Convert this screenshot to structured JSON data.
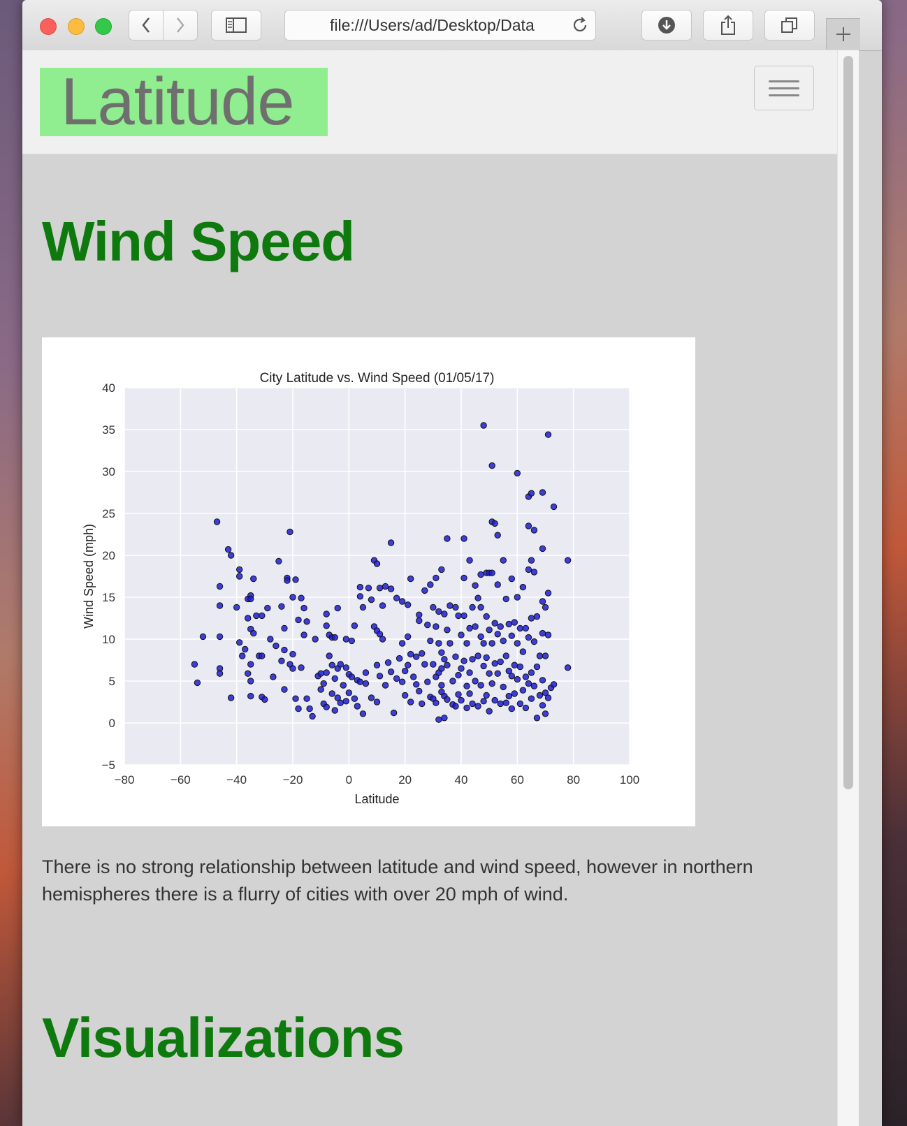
{
  "browser": {
    "url": "file:///Users/ad/Desktop/Data"
  },
  "navbar": {
    "brand": "Latitude"
  },
  "section": {
    "title": "Wind Speed",
    "description": "There is no strong relationship between latitude and wind speed, however in northern hemispheres there is a flurry of cities with over 20 mph of wind."
  },
  "next_section": {
    "title": "Visualizations"
  },
  "colors": {
    "brand_bg": "#90ee90",
    "heading": "#0e7a0e",
    "point": "#1f1fd6",
    "plot_bg": "#e9eaf2"
  },
  "chart_data": {
    "type": "scatter",
    "title": "City Latitude vs. Wind Speed (01/05/17)",
    "xlabel": "Latitude",
    "ylabel": "Wind Speed (mph)",
    "xlim": [
      -80,
      100
    ],
    "ylim": [
      -5,
      40
    ],
    "xticks": [
      "−80",
      "−60",
      "−40",
      "−20",
      "0",
      "20",
      "40",
      "60",
      "80",
      "100"
    ],
    "yticks": [
      "−5",
      "0",
      "5",
      "10",
      "15",
      "20",
      "25",
      "30",
      "35",
      "40"
    ],
    "grid": true,
    "points": [
      [
        -55,
        7
      ],
      [
        -54,
        4.8
      ],
      [
        -52,
        10.3
      ],
      [
        -47,
        24
      ],
      [
        -46,
        16.3
      ],
      [
        -46,
        14
      ],
      [
        -46,
        10.3
      ],
      [
        -46,
        6.5
      ],
      [
        -46,
        5.9
      ],
      [
        -43,
        20.7
      ],
      [
        -42,
        20
      ],
      [
        -42,
        3
      ],
      [
        -40,
        13.8
      ],
      [
        -39,
        18.3
      ],
      [
        -39,
        17.5
      ],
      [
        -39,
        9.6
      ],
      [
        -38,
        8
      ],
      [
        -37,
        8.8
      ],
      [
        -36,
        12.5
      ],
      [
        -36,
        14.8
      ],
      [
        -35,
        15.2
      ],
      [
        -35,
        14.8
      ],
      [
        -35,
        11.2
      ],
      [
        -34,
        17.2
      ],
      [
        -34,
        10.7
      ],
      [
        -35,
        7
      ],
      [
        -35,
        5
      ],
      [
        -35,
        3.2
      ],
      [
        -36,
        5.9
      ],
      [
        -33,
        12.8
      ],
      [
        -32,
        8
      ],
      [
        -31,
        12.8
      ],
      [
        -31,
        8
      ],
      [
        -31,
        3.1
      ],
      [
        -30,
        2.8
      ],
      [
        -29,
        13.7
      ],
      [
        -28,
        10
      ],
      [
        -27,
        5.5
      ],
      [
        -26,
        9.2
      ],
      [
        -25,
        19.3
      ],
      [
        -24,
        13.9
      ],
      [
        -24,
        7.4
      ],
      [
        -23,
        11.3
      ],
      [
        -23,
        8.7
      ],
      [
        -23,
        4
      ],
      [
        -22,
        17.3
      ],
      [
        -22,
        17
      ],
      [
        -21,
        22.8
      ],
      [
        -21,
        7
      ],
      [
        -20,
        15
      ],
      [
        -20,
        8.2
      ],
      [
        -20,
        6.5
      ],
      [
        -19,
        17.1
      ],
      [
        -19,
        2.9
      ],
      [
        -18,
        12.3
      ],
      [
        -18,
        1.7
      ],
      [
        -17,
        14.9
      ],
      [
        -17,
        6.6
      ],
      [
        -16,
        13.7
      ],
      [
        -16,
        10.5
      ],
      [
        -15,
        12.1
      ],
      [
        -15,
        2.9
      ],
      [
        -14,
        1.7
      ],
      [
        -13,
        0.8
      ],
      [
        -12,
        10
      ],
      [
        -11,
        5.6
      ],
      [
        -10,
        5.9
      ],
      [
        -10,
        4
      ],
      [
        -9,
        4.7
      ],
      [
        -9,
        2.3
      ],
      [
        -8,
        13
      ],
      [
        -8,
        11.6
      ],
      [
        -8,
        6
      ],
      [
        -8,
        1.9
      ],
      [
        -7,
        10.5
      ],
      [
        -7,
        8
      ],
      [
        -6,
        10.2
      ],
      [
        -6,
        6.9
      ],
      [
        -6,
        3.5
      ],
      [
        -5,
        10.2
      ],
      [
        -5,
        5.3
      ],
      [
        -5,
        1.5
      ],
      [
        -4,
        13.7
      ],
      [
        -4,
        6.5
      ],
      [
        -4,
        3
      ],
      [
        -3,
        7
      ],
      [
        -3,
        2.4
      ],
      [
        -2,
        4.5
      ],
      [
        -1,
        10
      ],
      [
        -1,
        6.6
      ],
      [
        -1,
        2.6
      ],
      [
        0,
        5.8
      ],
      [
        0,
        3.6
      ],
      [
        1,
        9.8
      ],
      [
        1,
        5.5
      ],
      [
        2,
        11.6
      ],
      [
        2,
        2.9
      ],
      [
        3,
        5.1
      ],
      [
        3,
        2
      ],
      [
        4,
        16.2
      ],
      [
        4,
        15.1
      ],
      [
        4,
        4.9
      ],
      [
        5,
        13.8
      ],
      [
        5,
        1.1
      ],
      [
        6,
        6
      ],
      [
        6,
        4.7
      ],
      [
        7,
        16.1
      ],
      [
        8,
        3
      ],
      [
        8,
        14.7
      ],
      [
        9,
        19.4
      ],
      [
        9,
        11.5
      ],
      [
        10,
        19
      ],
      [
        10,
        11
      ],
      [
        10,
        6.9
      ],
      [
        10,
        2.5
      ],
      [
        11,
        16.1
      ],
      [
        11,
        10.6
      ],
      [
        11,
        5.6
      ],
      [
        12,
        14
      ],
      [
        12,
        10
      ],
      [
        13,
        16.3
      ],
      [
        13,
        4.5
      ],
      [
        14,
        7.2
      ],
      [
        15,
        21.5
      ],
      [
        15,
        16
      ],
      [
        15,
        6.1
      ],
      [
        16,
        1.2
      ],
      [
        17,
        14.9
      ],
      [
        17,
        5.3
      ],
      [
        18,
        7.7
      ],
      [
        19,
        14.5
      ],
      [
        19,
        9.5
      ],
      [
        19,
        4.9
      ],
      [
        20,
        6.2
      ],
      [
        20,
        3.3
      ],
      [
        21,
        14.1
      ],
      [
        21,
        10.3
      ],
      [
        21,
        6.9
      ],
      [
        22,
        17.2
      ],
      [
        22,
        8.2
      ],
      [
        22,
        2.5
      ],
      [
        23,
        5.5
      ],
      [
        24,
        7.9
      ],
      [
        24,
        4.6
      ],
      [
        25,
        12.9
      ],
      [
        25,
        3.8
      ],
      [
        26,
        8.3
      ],
      [
        26,
        2.3
      ],
      [
        27,
        15.8
      ],
      [
        27,
        7
      ],
      [
        28,
        11.7
      ],
      [
        28,
        4.9
      ],
      [
        29,
        16.5
      ],
      [
        29,
        9.8
      ],
      [
        29,
        3.1
      ],
      [
        30,
        13.8
      ],
      [
        30,
        7
      ],
      [
        30,
        2.9
      ],
      [
        31,
        17.3
      ],
      [
        31,
        11.5
      ],
      [
        31,
        5.5
      ],
      [
        31,
        2.4
      ],
      [
        32,
        13.3
      ],
      [
        32,
        9.5
      ],
      [
        32,
        6
      ],
      [
        32,
        0.4
      ],
      [
        33,
        18.3
      ],
      [
        33,
        8.4
      ],
      [
        33,
        6.5
      ],
      [
        33,
        4.5
      ],
      [
        34,
        13
      ],
      [
        34,
        7.6
      ],
      [
        34,
        3.2
      ],
      [
        34,
        0.6
      ],
      [
        35,
        22
      ],
      [
        35,
        11.1
      ],
      [
        35,
        6.9
      ],
      [
        35,
        2.8
      ],
      [
        36,
        14
      ],
      [
        36,
        9.5
      ],
      [
        37,
        5
      ],
      [
        37,
        2.2
      ],
      [
        38,
        13.8
      ],
      [
        38,
        7.9
      ],
      [
        38,
        2
      ],
      [
        39,
        12.8
      ],
      [
        39,
        5.7
      ],
      [
        39,
        3.4
      ],
      [
        40,
        10.5
      ],
      [
        40,
        6.5
      ],
      [
        40,
        2.7
      ],
      [
        41,
        22
      ],
      [
        41,
        17.3
      ],
      [
        41,
        12.8
      ],
      [
        41,
        7.4
      ],
      [
        42,
        9.5
      ],
      [
        42,
        4.4
      ],
      [
        42,
        1.8
      ],
      [
        43,
        19.4
      ],
      [
        43,
        11.3
      ],
      [
        43,
        6
      ],
      [
        43,
        3.5
      ],
      [
        44,
        13.8
      ],
      [
        44,
        7.6
      ],
      [
        44,
        2.3
      ],
      [
        45,
        16.4
      ],
      [
        45,
        11.5
      ],
      [
        45,
        5
      ],
      [
        46,
        14.9
      ],
      [
        46,
        8
      ],
      [
        46,
        2
      ],
      [
        47,
        17.7
      ],
      [
        47,
        10.3
      ],
      [
        47,
        4.5
      ],
      [
        48,
        35.5
      ],
      [
        48,
        9.5
      ],
      [
        48,
        6.8
      ],
      [
        48,
        2.6
      ],
      [
        49,
        17.9
      ],
      [
        49,
        12.7
      ],
      [
        49,
        7.8
      ],
      [
        49,
        3.3
      ],
      [
        50,
        17.9
      ],
      [
        50,
        11.1
      ],
      [
        50,
        5.9
      ],
      [
        50,
        1.4
      ],
      [
        51,
        30.7
      ],
      [
        51,
        24
      ],
      [
        51,
        17.9
      ],
      [
        51,
        9.5
      ],
      [
        51,
        4.7
      ],
      [
        52,
        23.8
      ],
      [
        52,
        11.9
      ],
      [
        52,
        7.1
      ],
      [
        52,
        2.7
      ],
      [
        53,
        22.4
      ],
      [
        53,
        16.5
      ],
      [
        53,
        10.6
      ],
      [
        53,
        5.9
      ],
      [
        54,
        11.5
      ],
      [
        54,
        7.3
      ],
      [
        54,
        2.3
      ],
      [
        55,
        19.4
      ],
      [
        55,
        9.8
      ],
      [
        55,
        4.3
      ],
      [
        56,
        14.8
      ],
      [
        56,
        8
      ],
      [
        56,
        2.4
      ],
      [
        57,
        11.8
      ],
      [
        57,
        6.2
      ],
      [
        57,
        3.2
      ],
      [
        58,
        17.2
      ],
      [
        58,
        10.4
      ],
      [
        58,
        5.6
      ],
      [
        58,
        1.7
      ],
      [
        59,
        12
      ],
      [
        59,
        6.9
      ],
      [
        59,
        3.5
      ],
      [
        60,
        29.8
      ],
      [
        60,
        15
      ],
      [
        60,
        9.5
      ],
      [
        60,
        5.2
      ],
      [
        61,
        11.3
      ],
      [
        61,
        6.7
      ],
      [
        61,
        2.3
      ],
      [
        62,
        16.2
      ],
      [
        62,
        8.5
      ],
      [
        62,
        3.9
      ],
      [
        63,
        11.3
      ],
      [
        63,
        5.5
      ],
      [
        63,
        1.8
      ],
      [
        64,
        27
      ],
      [
        64,
        23.5
      ],
      [
        64,
        18.3
      ],
      [
        64,
        10.2
      ],
      [
        64,
        4.7
      ],
      [
        65,
        27.4
      ],
      [
        65,
        19.4
      ],
      [
        65,
        12.5
      ],
      [
        65,
        6
      ],
      [
        65,
        2.9
      ],
      [
        66,
        23
      ],
      [
        66,
        18
      ],
      [
        66,
        9.7
      ],
      [
        66,
        4.4
      ],
      [
        67,
        12.7
      ],
      [
        67,
        6.7
      ],
      [
        67,
        0.6
      ],
      [
        68,
        8
      ],
      [
        68,
        3.3
      ],
      [
        69,
        27.5
      ],
      [
        69,
        20.8
      ],
      [
        69,
        14.5
      ],
      [
        69,
        10.7
      ],
      [
        69,
        5.1
      ],
      [
        69,
        2.1
      ],
      [
        70,
        13.8
      ],
      [
        70,
        8
      ],
      [
        70,
        3.6
      ],
      [
        70,
        1.1
      ],
      [
        71,
        34.4
      ],
      [
        71,
        15.5
      ],
      [
        71,
        10.5
      ],
      [
        71,
        3
      ],
      [
        72,
        4.2
      ],
      [
        73,
        25.8
      ],
      [
        73,
        4.6
      ],
      [
        78,
        19.4
      ],
      [
        78,
        6.6
      ],
      [
        33,
        3.7
      ],
      [
        47,
        13.8
      ],
      [
        25,
        12.2
      ]
    ]
  }
}
